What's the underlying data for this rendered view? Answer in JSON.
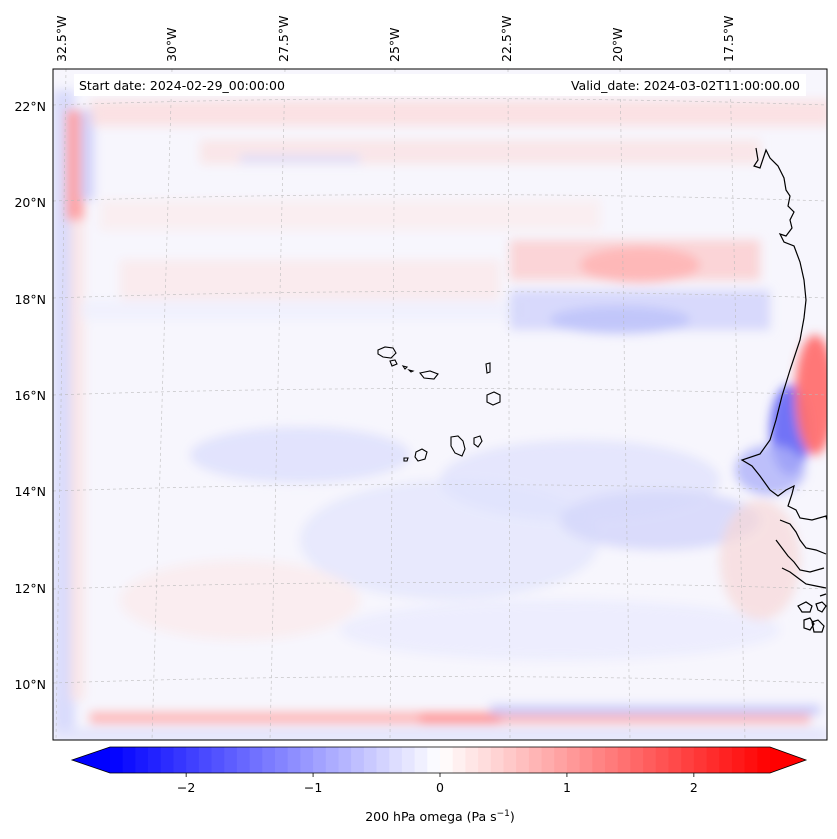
{
  "header": {
    "start_date": "Start date: 2024-02-29_00:00:00",
    "valid_date": "Valid_date: 2024-03-02T11:00:00.00"
  },
  "longitude_labels": [
    "32.5°W",
    "30°W",
    "27.5°W",
    "25°W",
    "22.5°W",
    "20°W",
    "17.5°W"
  ],
  "latitude_labels": [
    "22°N",
    "20°N",
    "18°N",
    "16°N",
    "14°N",
    "12°N",
    "10°N"
  ],
  "colorbar": {
    "title": "200 hPa omega (Pa s",
    "title_exp": "−1",
    "title_close": ")",
    "ticks": [
      "−2",
      "−1",
      "0",
      "1",
      "2"
    ],
    "min": -2.6,
    "max": 2.6,
    "tick_values": [
      -2,
      -1,
      0,
      1,
      2
    ],
    "extend": "both"
  },
  "colors": {
    "negative": "#0000ff",
    "positive": "#ff0000",
    "neutral": "#ffffff",
    "coastline": "#000000",
    "gridline": "#b0b0b0"
  },
  "map": {
    "variable": "200 hPa omega",
    "units": "Pa s^-1",
    "lon_range": [
      -33.0,
      -15.5
    ],
    "lat_range": [
      8.9,
      22.8
    ],
    "features": [
      "Cabo Verde islands",
      "West African coastline"
    ]
  }
}
